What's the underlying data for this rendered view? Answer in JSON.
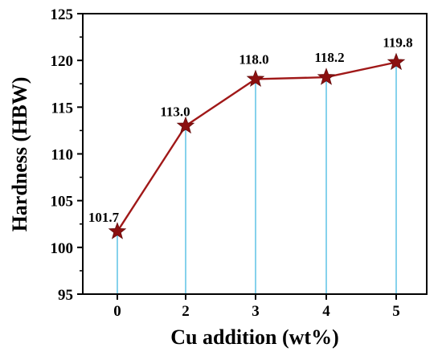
{
  "chart_data": {
    "type": "line",
    "title": "",
    "xlabel": "Cu addition (wt%)",
    "ylabel": "Hardness (HBW)",
    "x_categories": [
      "0",
      "2",
      "3",
      "4",
      "5"
    ],
    "series": [
      {
        "values": [
          101.7,
          113.0,
          118.0,
          118.2,
          119.8
        ]
      }
    ],
    "data_labels": [
      "101.7",
      "113.0",
      "118.0",
      "118.2",
      "119.8"
    ],
    "ylim": [
      95,
      125
    ],
    "y_ticks": [
      "95",
      "100",
      "105",
      "110",
      "115",
      "120",
      "125"
    ],
    "grid": false,
    "marker": "star",
    "drop_lines": true,
    "colors": {
      "line": "#a01818",
      "marker_fill": "#8b1010",
      "drop_line": "#36b4df",
      "axis": "#000000"
    }
  }
}
